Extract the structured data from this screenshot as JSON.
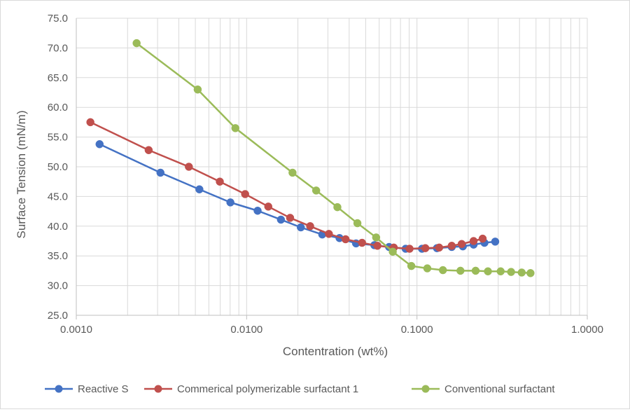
{
  "chart_data": {
    "type": "line",
    "title": "",
    "xlabel": "Contentration (wt%)",
    "ylabel": "Surface Tension (mN/m)",
    "x_scale": "log",
    "xlim": [
      0.001,
      1.0
    ],
    "ylim": [
      25.0,
      75.0
    ],
    "x_ticks": [
      0.001,
      0.01,
      0.1,
      1.0
    ],
    "x_tick_labels": [
      "0.0010",
      "0.0100",
      "0.1000",
      "1.0000"
    ],
    "y_ticks": [
      25,
      30,
      35,
      40,
      45,
      50,
      55,
      60,
      65,
      70,
      75
    ],
    "y_tick_labels": [
      "25.0",
      "30.0",
      "35.0",
      "40.0",
      "45.0",
      "50.0",
      "55.0",
      "60.0",
      "65.0",
      "70.0",
      "75.0"
    ],
    "grid": true,
    "legend_position": "bottom",
    "series": [
      {
        "name": "Reactive S",
        "color": "#4472c4",
        "points": [
          [
            0.00137,
            53.8
          ],
          [
            0.00312,
            49.0
          ],
          [
            0.00528,
            46.2
          ],
          [
            0.00803,
            44.0
          ],
          [
            0.0116,
            42.6
          ],
          [
            0.0159,
            41.1
          ],
          [
            0.0208,
            39.8
          ],
          [
            0.0278,
            38.6
          ],
          [
            0.0351,
            38.0
          ],
          [
            0.0439,
            37.1
          ],
          [
            0.0562,
            36.8
          ],
          [
            0.0686,
            36.5
          ],
          [
            0.0858,
            36.2
          ],
          [
            0.107,
            36.2
          ],
          [
            0.131,
            36.3
          ],
          [
            0.16,
            36.5
          ],
          [
            0.186,
            36.6
          ],
          [
            0.215,
            36.9
          ],
          [
            0.249,
            37.2
          ],
          [
            0.288,
            37.4
          ]
        ]
      },
      {
        "name": "Commerical polymerizable surfactant 1",
        "color": "#c0504d",
        "points": [
          [
            0.00121,
            57.5
          ],
          [
            0.00266,
            52.8
          ],
          [
            0.00458,
            50.0
          ],
          [
            0.00696,
            47.5
          ],
          [
            0.0098,
            45.4
          ],
          [
            0.0134,
            43.3
          ],
          [
            0.018,
            41.4
          ],
          [
            0.0236,
            40.0
          ],
          [
            0.0304,
            38.7
          ],
          [
            0.0381,
            37.8
          ],
          [
            0.0476,
            37.2
          ],
          [
            0.0586,
            36.7
          ],
          [
            0.0731,
            36.4
          ],
          [
            0.0905,
            36.2
          ],
          [
            0.112,
            36.3
          ],
          [
            0.135,
            36.4
          ],
          [
            0.16,
            36.7
          ],
          [
            0.183,
            37.0
          ],
          [
            0.215,
            37.5
          ],
          [
            0.243,
            37.9
          ]
        ]
      },
      {
        "name": "Conventional surfactant",
        "color": "#9bbb59",
        "points": [
          [
            0.00226,
            70.8
          ],
          [
            0.00516,
            63.0
          ],
          [
            0.00859,
            56.5
          ],
          [
            0.0186,
            49.0
          ],
          [
            0.0256,
            46.0
          ],
          [
            0.0341,
            43.2
          ],
          [
            0.0447,
            40.5
          ],
          [
            0.0576,
            38.1
          ],
          [
            0.0721,
            35.7
          ],
          [
            0.0927,
            33.3
          ],
          [
            0.115,
            32.9
          ],
          [
            0.142,
            32.6
          ],
          [
            0.18,
            32.5
          ],
          [
            0.221,
            32.5
          ],
          [
            0.261,
            32.4
          ],
          [
            0.31,
            32.4
          ],
          [
            0.357,
            32.3
          ],
          [
            0.412,
            32.2
          ],
          [
            0.464,
            32.1
          ]
        ]
      }
    ]
  }
}
